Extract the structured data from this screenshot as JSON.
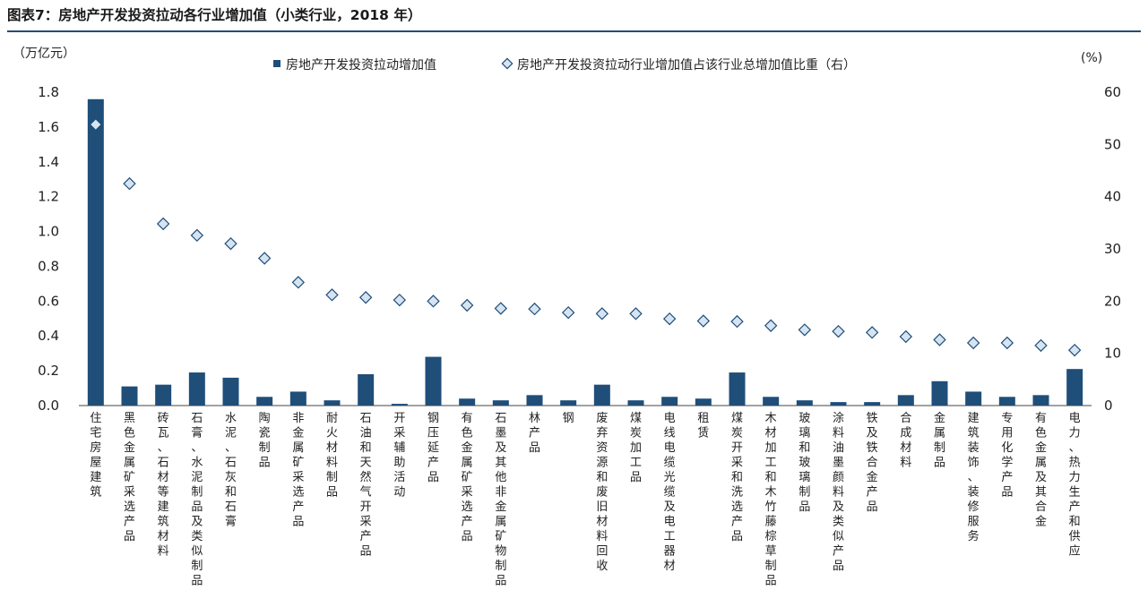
{
  "title": "图表7：房地产开发投资拉动各行业增加值（小类行业，2018 年）",
  "chart_data": {
    "type": "bar",
    "left_unit": "（万亿元）",
    "right_unit": "(%)",
    "ylim_left": [
      0,
      1.8
    ],
    "ylim_right": [
      0,
      60
    ],
    "left_ticks": [
      "0.0",
      "0.2",
      "0.4",
      "0.6",
      "0.8",
      "1.0",
      "1.2",
      "1.4",
      "1.6",
      "1.8"
    ],
    "right_ticks": [
      "0",
      "10",
      "20",
      "30",
      "40",
      "50",
      "60"
    ],
    "legend_position": "top",
    "grid": false,
    "bar_color": "#1f4e79",
    "marker_fill": "#d6e4f2",
    "marker_stroke": "#1f4e79",
    "categories": [
      "住宅房屋建筑",
      "黑色金属矿采选产品",
      "砖瓦、石材等建筑材料",
      "石膏、水泥制品及类似制品",
      "水泥、石灰和石膏",
      "陶瓷制品",
      "非金属矿采选产品",
      "耐火材料制品",
      "石油和天然气开采产品",
      "开采辅助活动",
      "钢压延产品",
      "有色金属矿采选产品",
      "石墨及其他非金属矿物制品",
      "林产品",
      "钢",
      "废弃资源和废旧材料回收",
      "煤炭加工品",
      "电线电缆光缆及电工器材",
      "租赁",
      "煤炭开采和洗选产品",
      "木材加工和木竹藤棕草制品",
      "玻璃和玻璃制品",
      "涂料油墨颜料及类似产品",
      "铁及铁合金产品",
      "合成材料",
      "金属制品",
      "建筑装饰、装修服务",
      "专用化学产品",
      "有色金属及其合金",
      "电力、热力生产和供应"
    ],
    "series": [
      {
        "name": "房地产开发投资拉动增加值",
        "type": "bar",
        "axis": "left",
        "values": [
          1.76,
          0.11,
          0.12,
          0.19,
          0.16,
          0.05,
          0.08,
          0.03,
          0.18,
          0.01,
          0.28,
          0.04,
          0.03,
          0.06,
          0.03,
          0.12,
          0.03,
          0.05,
          0.04,
          0.19,
          0.05,
          0.03,
          0.02,
          0.02,
          0.06,
          0.14,
          0.08,
          0.05,
          0.06,
          0.21
        ]
      },
      {
        "name": "房地产开发投资拉动行业增加值占该行业总增加值比重（右）",
        "type": "scatter",
        "axis": "right",
        "values": [
          53.8,
          42.5,
          34.8,
          32.6,
          31.0,
          28.2,
          23.6,
          21.2,
          20.7,
          20.2,
          20.0,
          19.2,
          18.6,
          18.5,
          17.8,
          17.6,
          17.6,
          16.6,
          16.2,
          16.1,
          15.3,
          14.5,
          14.2,
          14.0,
          13.2,
          12.6,
          12.0,
          12.0,
          11.5,
          10.6
        ]
      }
    ]
  }
}
